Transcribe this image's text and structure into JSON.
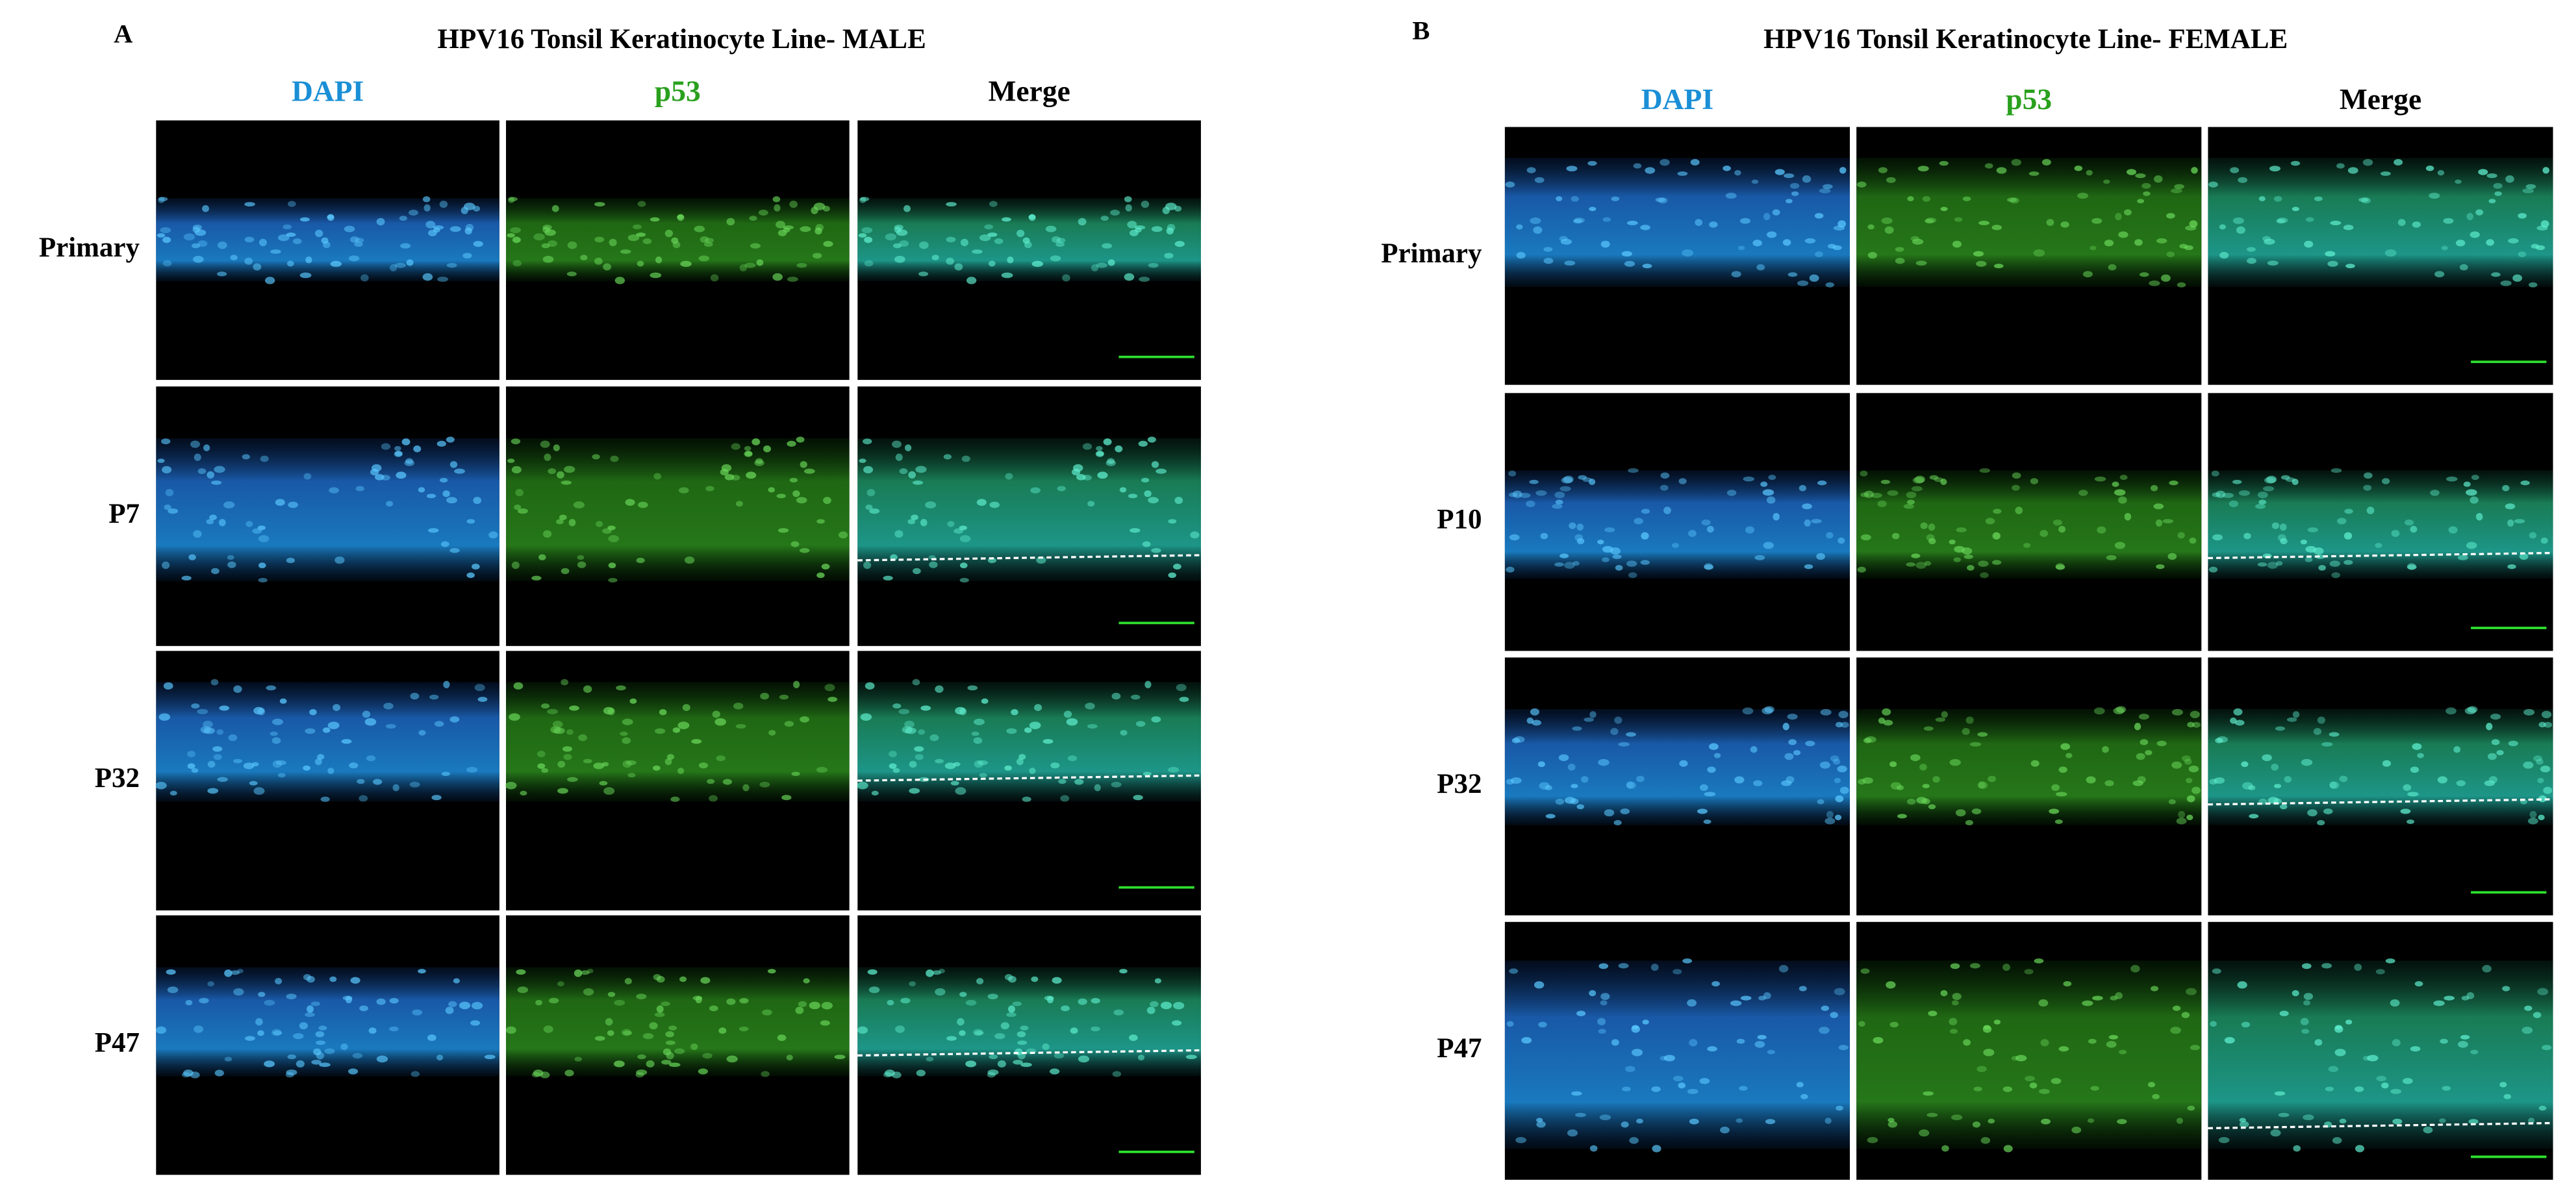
{
  "panels": [
    {
      "label": "A",
      "title": "HPV16 Tonsil Keratinocyte Line- MALE",
      "columns": [
        "DAPI",
        "p53",
        "Merge"
      ],
      "rows": [
        "Primary",
        "P7",
        "P32",
        "P47"
      ]
    },
    {
      "label": "B",
      "title": "HPV16 Tonsil Keratinocyte Line- FEMALE",
      "columns": [
        "DAPI",
        "p53",
        "Merge"
      ],
      "rows": [
        "Primary",
        "P10",
        "P32",
        "P47"
      ]
    }
  ]
}
